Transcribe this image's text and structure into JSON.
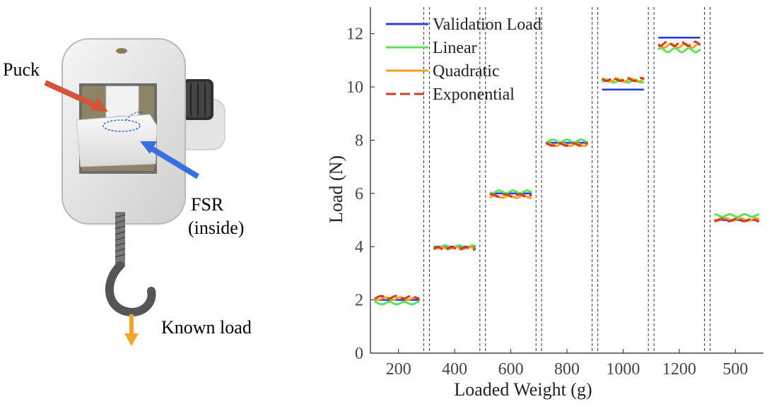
{
  "photo": {
    "labels": {
      "puck": "Puck",
      "fsr_line1": "FSR",
      "fsr_line2": "(inside)",
      "known_load": "Known load"
    },
    "colors": {
      "puck_arrow": "#d0553a",
      "fsr_arrow": "#3a6fe0",
      "load_arrow": "#f2a52a",
      "housing": "#ececec",
      "hook": "#555555"
    }
  },
  "chart_data": {
    "type": "line",
    "title": "",
    "xlabel": "Loaded Weight (g)",
    "ylabel": "Load (N)",
    "ylim": [
      0,
      13
    ],
    "yticks": [
      0,
      2,
      4,
      6,
      8,
      10,
      12
    ],
    "categories": [
      "200",
      "400",
      "600",
      "800",
      "1000",
      "1200",
      "500"
    ],
    "segments": [
      {
        "label": "200",
        "validation": 2.0,
        "linear": 1.88,
        "quadratic": 2.05,
        "exponential": 2.1,
        "ripple": 0.05
      },
      {
        "label": "400",
        "validation": 4.0,
        "linear": 4.0,
        "quadratic": 3.95,
        "exponential": 3.93,
        "ripple": 0.05
      },
      {
        "label": "600",
        "validation": 6.0,
        "linear": 6.06,
        "quadratic": 5.88,
        "exponential": 5.92,
        "ripple": 0.05
      },
      {
        "label": "800",
        "validation": 7.9,
        "linear": 7.97,
        "quadratic": 7.83,
        "exponential": 7.84,
        "ripple": 0.05
      },
      {
        "label": "1000",
        "validation": 9.9,
        "linear": 10.22,
        "quadratic": 10.25,
        "exponential": 10.28,
        "ripple": 0.06
      },
      {
        "label": "1200",
        "validation": 11.85,
        "linear": 11.38,
        "quadratic": 11.55,
        "exponential": 11.62,
        "ripple": 0.08
      },
      {
        "label": "500",
        "validation": 5.0,
        "linear": 5.17,
        "quadratic": 5.02,
        "exponential": 5.0,
        "ripple": 0.05
      }
    ],
    "series": [
      {
        "name": "Validation Load",
        "key": "validation",
        "color": "#2b3fd6",
        "dash": ""
      },
      {
        "name": "Linear",
        "key": "linear",
        "color": "#5ee05e",
        "dash": ""
      },
      {
        "name": "Quadratic",
        "key": "quadratic",
        "color": "#f2a020",
        "dash": ""
      },
      {
        "name": "Exponential",
        "key": "exponential",
        "color": "#d23a2a",
        "dash": "14 6"
      }
    ],
    "legend_position": "top-left"
  }
}
